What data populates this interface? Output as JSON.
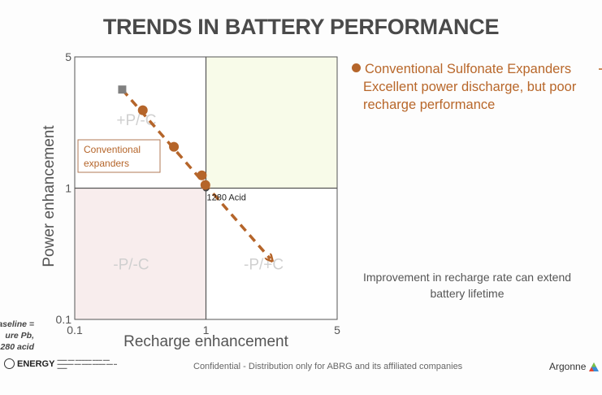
{
  "title": "TRENDS IN BATTERY PERFORMANCE",
  "chart_data": {
    "type": "scatter",
    "title": "",
    "xlabel": "Recharge enhancement",
    "ylabel": "Power enhancement",
    "xscale": "log",
    "yscale": "log",
    "xlim": [
      0.1,
      5
    ],
    "ylim": [
      0.1,
      5
    ],
    "x_ticks": [
      "0.1",
      "1",
      "5"
    ],
    "y_ticks": [
      "0.1",
      "1",
      "5"
    ],
    "grid": false,
    "quadrant_dividers": {
      "x": 1,
      "y": 1
    },
    "quadrants": [
      {
        "label": "+P/-C",
        "position": "top-left",
        "fill": "#ffffff"
      },
      {
        "label": "",
        "position": "top-right",
        "fill": "#f8fbe9"
      },
      {
        "label": "-P/-C",
        "position": "bottom-left",
        "fill": "#f8eded"
      },
      {
        "label": "-P/+C",
        "position": "bottom-right",
        "fill": "#ffffff"
      }
    ],
    "series": [
      {
        "name": "Conventional expanders",
        "color": "#b5652a",
        "points": [
          {
            "x": 0.33,
            "y": 2.6
          },
          {
            "x": 0.57,
            "y": 1.66
          },
          {
            "x": 0.93,
            "y": 1.17
          },
          {
            "x": 0.99,
            "y": 1.04
          }
        ]
      }
    ],
    "reference_point": {
      "label": "1280 Acid",
      "x": 1,
      "y": 1
    },
    "baseline_marker": {
      "x": 0.23,
      "y": 3.35,
      "shape": "square",
      "color": "#808080"
    },
    "trend_arrow": {
      "from": {
        "x": 0.23,
        "y": 3.35
      },
      "to": {
        "x": 2.2,
        "y": 0.29
      },
      "style": "dashed",
      "color": "#b5652a"
    },
    "annotation_box": "Conventional expanders"
  },
  "annotation_lines": [
    "Conventional",
    "expanders"
  ],
  "side_text": {
    "bullet_heading": "Conventional Sulfonate Expanders",
    "line2": "Excellent power discharge, but poor",
    "line3": "recharge performance"
  },
  "note": "Improvement in recharge rate can extend battery lifetime",
  "baseline_lines": [
    "aseline =",
    "ure  Pb,",
    "280 acid"
  ],
  "footer": "Confidential  - Distribution only for ABRG and its affiliated companies",
  "logos": {
    "doe": "ENERGY",
    "argonne": "Argonne"
  },
  "colors": {
    "accent": "#b5652a",
    "title": "#4a4a4a"
  }
}
